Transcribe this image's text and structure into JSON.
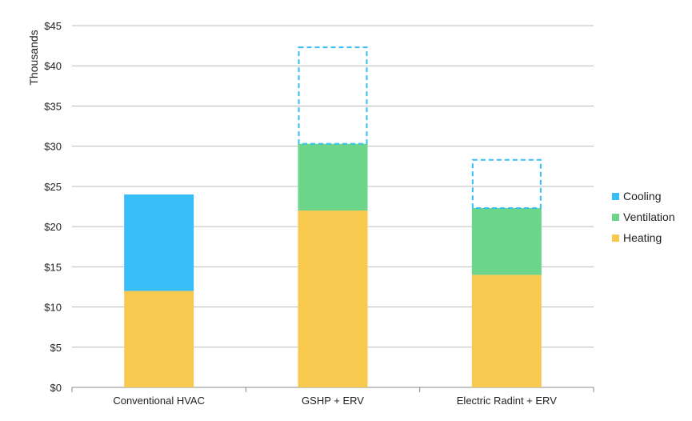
{
  "chart_data": {
    "type": "bar",
    "stacked": true,
    "ylabel": "Thousands",
    "xlabel": "",
    "ylim": [
      0,
      45
    ],
    "y_ticks": [
      "$0",
      "$5",
      "$10",
      "$15",
      "$20",
      "$25",
      "$30",
      "$35",
      "$40",
      "$45"
    ],
    "y_tick_values": [
      0,
      5,
      10,
      15,
      20,
      25,
      30,
      35,
      40,
      45
    ],
    "categories": [
      "Conventional HVAC",
      "GSHP + ERV",
      "Electric Radint + ERV"
    ],
    "series": [
      {
        "name": "Heating",
        "values": [
          12,
          22,
          14
        ],
        "color": "#F7C94E"
      },
      {
        "name": "Ventilation",
        "values": [
          0,
          8.3,
          8.3
        ],
        "color": "#6BD68A"
      },
      {
        "name": "Cooling",
        "values": [
          12,
          12,
          6
        ],
        "color": "#37BEF8",
        "outline_only": [
          false,
          true,
          true
        ]
      }
    ],
    "grid": true,
    "legend_position": "right",
    "legend_order": [
      "Cooling",
      "Ventilation",
      "Heating"
    ]
  }
}
